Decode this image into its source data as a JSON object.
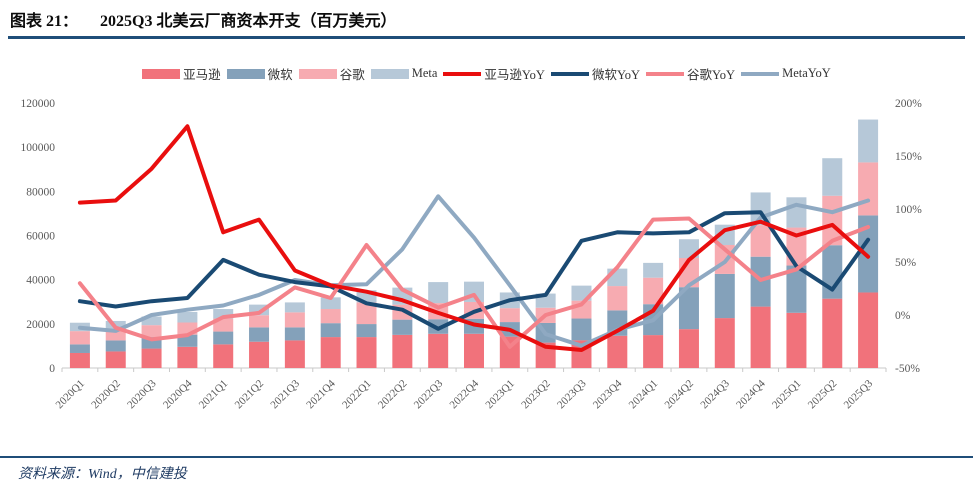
{
  "figure": {
    "label": "图表 21：",
    "title": "2025Q3  北美云厂商资本开支（百万美元）",
    "source": "资料来源：Wind，中信建投"
  },
  "colors": {
    "accent_rule": "#1F4E79",
    "amazon_bar": "#F1727B",
    "msft_bar": "#84A1BA",
    "google_bar": "#F7ABB1",
    "meta_bar": "#B6C8D8",
    "amazon_line": "#E90E0E",
    "msft_line": "#1A4A73",
    "google_line": "#F4828A",
    "meta_line": "#8FA9C2",
    "axis_text": "#595959",
    "axis_line": "#C9C9C9"
  },
  "chart_data": {
    "type": "combo-stacked-bar-line",
    "title": "2025Q3 北美云厂商资本开支（百万美元）",
    "grid": false,
    "legend_position": "top",
    "categories": [
      "2020Q1",
      "2020Q2",
      "2020Q3",
      "2020Q4",
      "2021Q1",
      "2021Q2",
      "2021Q3",
      "2021Q4",
      "2022Q1",
      "2022Q2",
      "2022Q3",
      "2022Q4",
      "2023Q1",
      "2023Q2",
      "2023Q3",
      "2023Q4",
      "2024Q1",
      "2024Q2",
      "2024Q3",
      "2024Q4",
      "2025Q1",
      "2025Q2",
      "2025Q3"
    ],
    "left_axis": {
      "min": 0,
      "max": 120000,
      "tick_labels": [
        "0",
        "20000",
        "40000",
        "60000",
        "80000",
        "100000",
        "120000"
      ]
    },
    "right_axis": {
      "min": -50,
      "max": 200,
      "tick_labels": [
        "-50%",
        "0%",
        "50%",
        "100%",
        "150%",
        "200%"
      ]
    },
    "bar_series": [
      {
        "name": "亚马逊",
        "color": "amazon_bar",
        "values": [
          6800,
          7500,
          8800,
          9600,
          10700,
          11900,
          12500,
          14000,
          14000,
          15000,
          15500,
          15500,
          14200,
          11500,
          12500,
          14600,
          14900,
          17600,
          22600,
          27800,
          25000,
          31400,
          34200
        ]
      },
      {
        "name": "微软",
        "color": "msft_bar",
        "values": [
          3900,
          5000,
          5200,
          5500,
          5800,
          6500,
          5900,
          6300,
          5900,
          6900,
          6600,
          6800,
          6600,
          8900,
          9900,
          11500,
          14000,
          19000,
          20000,
          22600,
          21400,
          24200,
          34900
        ]
      },
      {
        "name": "谷歌",
        "color": "google_bar",
        "values": [
          6000,
          5400,
          5400,
          5500,
          5900,
          5500,
          6800,
          6400,
          9800,
          6800,
          7300,
          7600,
          6300,
          6900,
          8100,
          11000,
          12000,
          13200,
          13100,
          14300,
          17200,
          22400,
          24000
        ]
      },
      {
        "name": "Meta",
        "color": "meta_bar",
        "values": [
          3800,
          3400,
          3900,
          4800,
          4300,
          4800,
          4500,
          5300,
          5500,
          7700,
          9500,
          9200,
          7100,
          6400,
          6800,
          7900,
          6700,
          8500,
          9200,
          14800,
          13700,
          17000,
          19400
        ]
      }
    ],
    "line_series": [
      {
        "name": "MetaYoY",
        "color": "meta_line",
        "unit": "%",
        "values": [
          -12,
          -15,
          0,
          5,
          9,
          19,
          33,
          28,
          29,
          62,
          112,
          73,
          28,
          -18,
          -29,
          -14,
          -5,
          28,
          50,
          92,
          104,
          97,
          108
        ]
      },
      {
        "name": "微软YoY",
        "color": "msft_line",
        "unit": "%",
        "values": [
          13,
          8,
          13,
          16,
          52,
          38,
          31,
          27,
          11,
          5,
          -13,
          3,
          14,
          19,
          70,
          78,
          77,
          78,
          96,
          97,
          46,
          24,
          71
        ]
      },
      {
        "name": "谷歌YoY",
        "color": "google_line",
        "unit": "%",
        "values": [
          30,
          -12,
          -23,
          -19,
          -2,
          2,
          26,
          16,
          66,
          24,
          7,
          19,
          -30,
          0,
          10,
          45,
          90,
          91,
          62,
          33,
          43,
          70,
          83
        ]
      },
      {
        "name": "亚马逊YoY",
        "color": "amazon_line",
        "unit": "%",
        "values": [
          106,
          108,
          138,
          178,
          78,
          90,
          42,
          28,
          22,
          14,
          2,
          -9,
          -14,
          -30,
          -33,
          -15,
          4,
          52,
          80,
          88,
          75,
          85,
          55
        ]
      }
    ],
    "legend_order": [
      "亚马逊",
      "微软",
      "谷歌",
      "Meta",
      "亚马逊YoY",
      "微软YoY",
      "谷歌YoY",
      "MetaYoY"
    ]
  }
}
